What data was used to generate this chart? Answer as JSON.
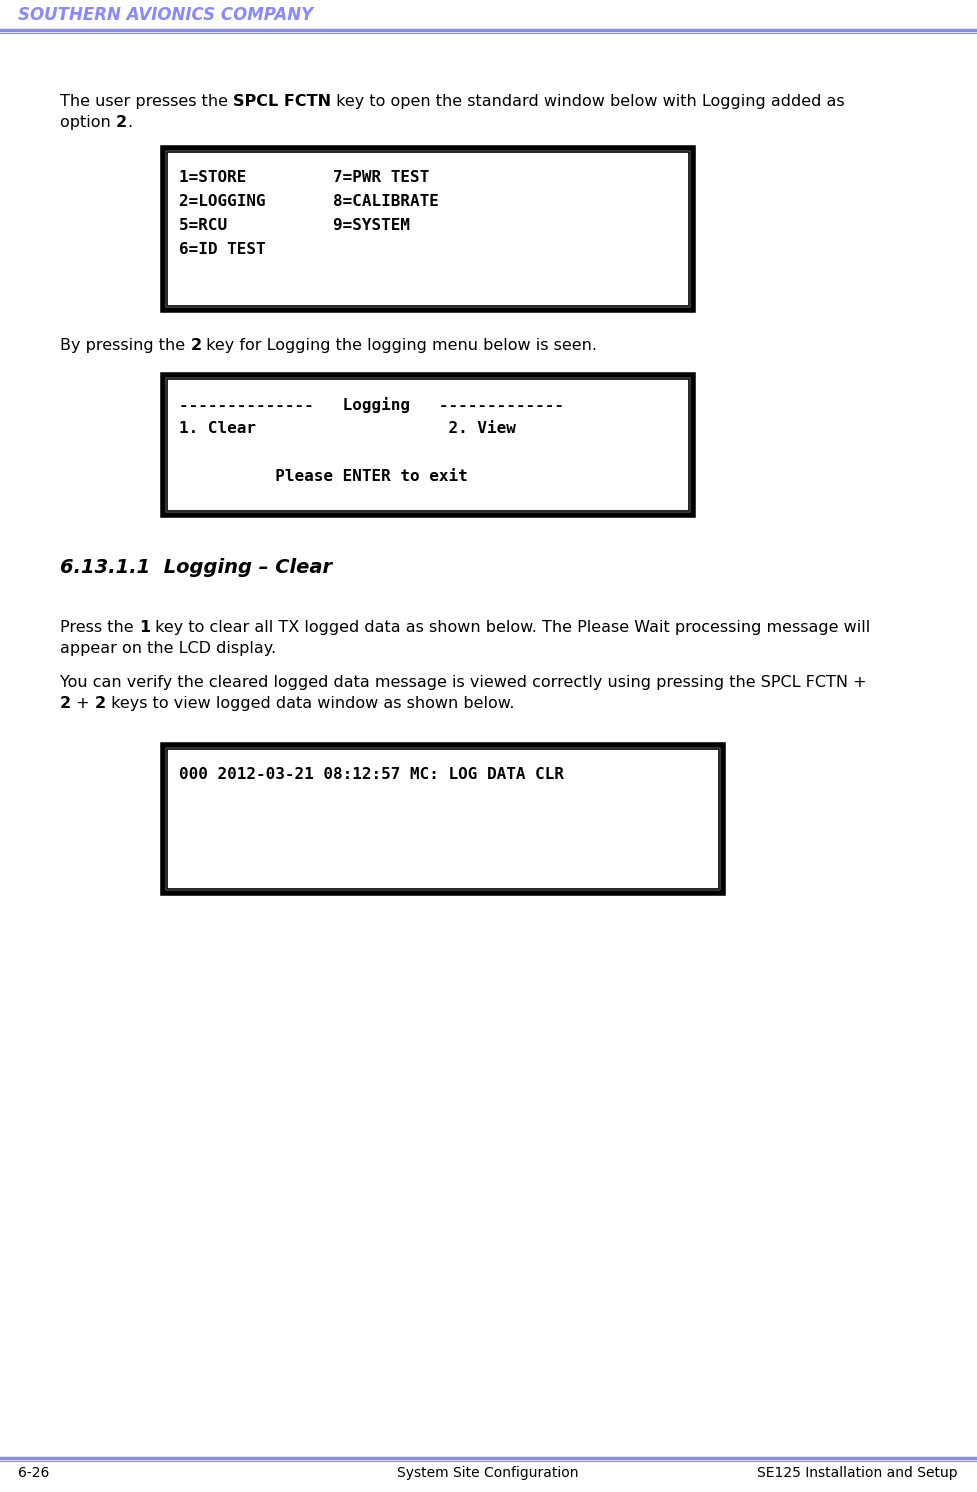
{
  "header_text": "SOUTHERN AVIONICS COMPANY",
  "header_color": "#8888ff",
  "header_line_color": "#8888ff",
  "footer_left": "6-26",
  "footer_center": "System Site Configuration",
  "footer_right": "SE125 Installation and Setup",
  "footer_line_color": "#8888ff",
  "body_bg": "#ffffff",
  "box1_lines": [
    "1=STORE         7=PWR TEST",
    "2=LOGGING       8=CALIBRATE",
    "5=RCU           9=SYSTEM",
    "6=ID TEST"
  ],
  "box2_lines": [
    "--------------   Logging   -------------",
    "1. Clear                    2. View",
    "",
    "          Please ENTER to exit"
  ],
  "section_heading": "6.13.1.1  Logging – Clear",
  "box3_lines": [
    "000 2012-03-21 08:12:57 MC: LOG DATA CLR"
  ],
  "fig_width": 9.77,
  "fig_height": 14.92
}
